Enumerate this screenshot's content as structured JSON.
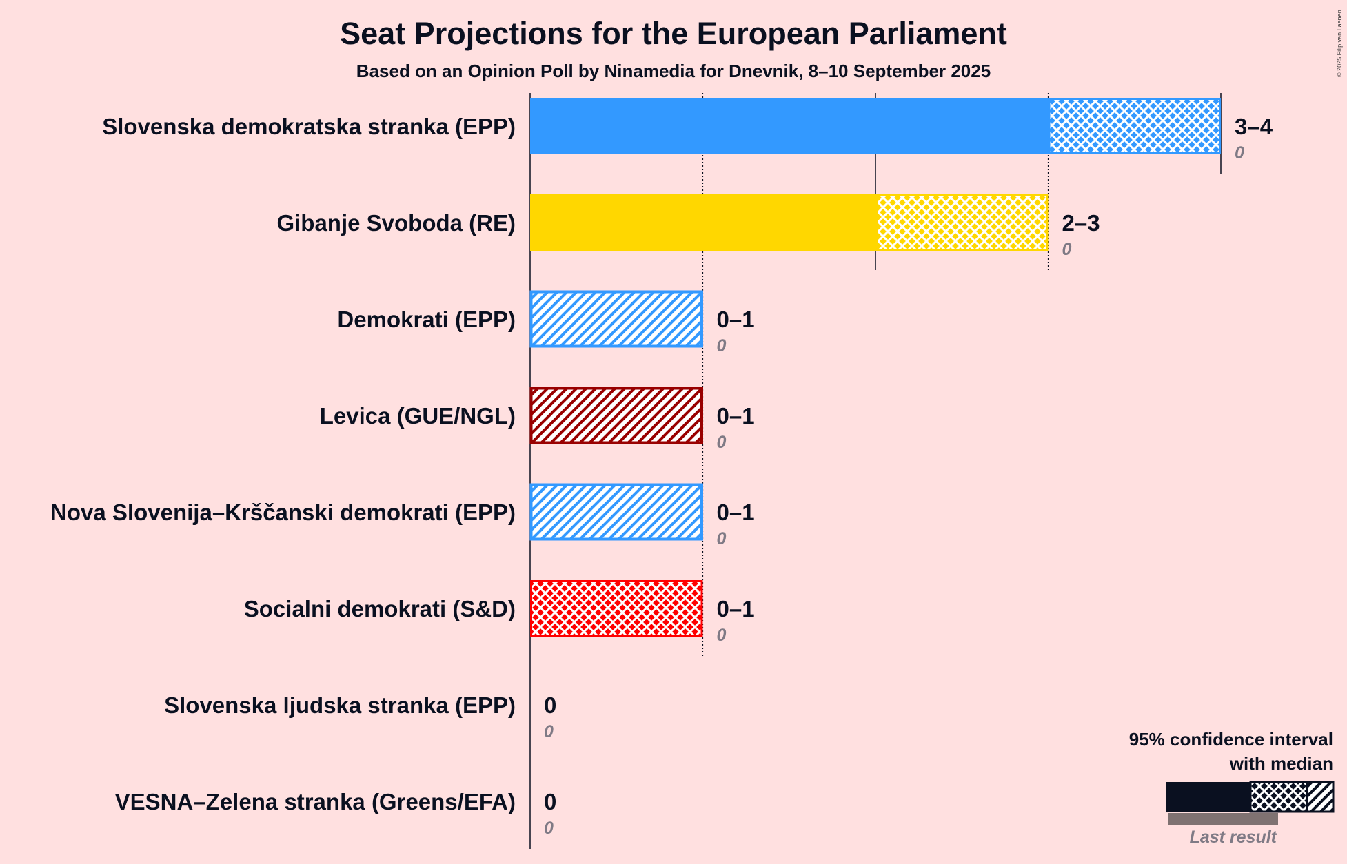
{
  "chart_data": {
    "type": "bar",
    "title": "Seat Projections for the European Parliament",
    "subtitle": "Based on an Opinion Poll by Ninamedia for Dnevnik, 8–10 September 2025",
    "copyright": "© 2025 Filip van Laenen",
    "xlabel": "",
    "ylabel": "",
    "xlim": [
      0,
      4
    ],
    "parties": [
      {
        "name": "Slovenska demokratska stranka (EPP)",
        "low": 3,
        "median": 4,
        "high": 4,
        "last": 0,
        "range_label": "3–4",
        "last_label": "0",
        "color": "#3399FF"
      },
      {
        "name": "Gibanje Svoboda (RE)",
        "low": 2,
        "median": 3,
        "high": 3,
        "last": 0,
        "range_label": "2–3",
        "last_label": "0",
        "color": "#FFD700"
      },
      {
        "name": "Demokrati (EPP)",
        "low": 0,
        "median": 0,
        "high": 1,
        "last": 0,
        "range_label": "0–1",
        "last_label": "0",
        "color": "#3399FF"
      },
      {
        "name": "Levica (GUE/NGL)",
        "low": 0,
        "median": 0,
        "high": 1,
        "last": 0,
        "range_label": "0–1",
        "last_label": "0",
        "color": "#990000"
      },
      {
        "name": "Nova Slovenija–Krščanski demokrati (EPP)",
        "low": 0,
        "median": 0,
        "high": 1,
        "last": 0,
        "range_label": "0–1",
        "last_label": "0",
        "color": "#3399FF"
      },
      {
        "name": "Socialni demokrati (S&D)",
        "low": 0,
        "median": 1,
        "high": 1,
        "last": 0,
        "range_label": "0–1",
        "last_label": "0",
        "color": "#FF0000"
      },
      {
        "name": "Slovenska ljudska stranka (EPP)",
        "low": 0,
        "median": 0,
        "high": 0,
        "last": 0,
        "range_label": "0",
        "last_label": "0",
        "color": "#3399FF"
      },
      {
        "name": "VESNA–Zelena stranka (Greens/EFA)",
        "low": 0,
        "median": 0,
        "high": 0,
        "last": 0,
        "range_label": "0",
        "last_label": "0",
        "color": "#66CC00"
      }
    ],
    "legend": {
      "line1": "95% confidence interval",
      "line2": "with median",
      "last_result": "Last result",
      "placement": "bottom-right"
    }
  }
}
